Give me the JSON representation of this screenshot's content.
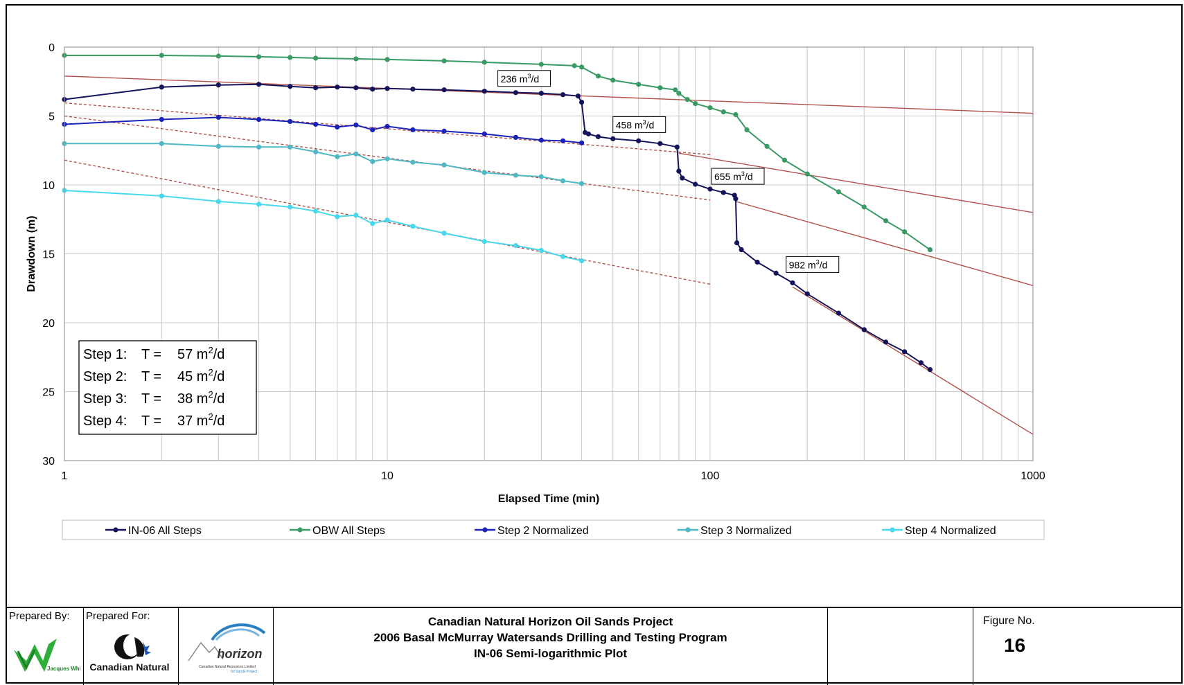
{
  "chart_data": {
    "type": "scatter",
    "x_scale": "log",
    "y_inverted": true,
    "xlabel": "Elapsed Time (min)",
    "ylabel": "Drawdown (m)",
    "xlim": [
      1,
      1000
    ],
    "ylim": [
      0,
      30
    ],
    "x_ticks": [
      "1",
      "10",
      "100",
      "1000"
    ],
    "y_ticks": [
      "0",
      "5",
      "10",
      "15",
      "20",
      "25",
      "30"
    ],
    "grid": true,
    "legend_position": "bottom",
    "series": [
      {
        "name": "IN-06 All Steps",
        "color": "#14145a",
        "x": [
          1,
          2,
          3,
          4,
          5,
          6,
          7,
          8,
          9,
          10,
          12,
          15,
          20,
          25,
          30,
          35,
          39,
          40,
          41,
          42,
          45,
          50,
          60,
          70,
          79,
          80,
          82,
          90,
          100,
          110,
          119,
          120,
          121,
          125,
          140,
          160,
          180,
          200,
          250,
          300,
          350,
          400,
          450,
          480
        ],
        "y": [
          3.8,
          2.9,
          2.75,
          2.7,
          2.85,
          2.95,
          2.9,
          2.95,
          3.05,
          3.0,
          3.05,
          3.1,
          3.2,
          3.3,
          3.35,
          3.45,
          3.55,
          4.0,
          6.2,
          6.3,
          6.5,
          6.65,
          6.8,
          7.0,
          7.25,
          9.0,
          9.5,
          9.95,
          10.3,
          10.55,
          10.75,
          11.0,
          14.2,
          14.7,
          15.6,
          16.4,
          17.1,
          17.9,
          19.3,
          20.5,
          21.4,
          22.1,
          22.9,
          23.4
        ]
      },
      {
        "name": "OBW All Steps",
        "color": "#3a9a64",
        "x": [
          1,
          2,
          3,
          4,
          5,
          6,
          8,
          10,
          15,
          20,
          30,
          38,
          40,
          45,
          50,
          60,
          70,
          78,
          80,
          85,
          90,
          100,
          110,
          120,
          130,
          150,
          170,
          200,
          250,
          300,
          350,
          400,
          480
        ],
        "y": [
          0.6,
          0.6,
          0.65,
          0.7,
          0.75,
          0.8,
          0.85,
          0.9,
          1.0,
          1.1,
          1.25,
          1.35,
          1.45,
          2.1,
          2.4,
          2.7,
          2.95,
          3.1,
          3.35,
          3.8,
          4.1,
          4.4,
          4.7,
          4.9,
          6.0,
          7.2,
          8.2,
          9.2,
          10.5,
          11.6,
          12.6,
          13.4,
          14.7
        ]
      },
      {
        "name": "Step 2 Normalized",
        "color": "#1a22b8",
        "x": [
          1,
          2,
          3,
          4,
          5,
          6,
          7,
          8,
          9,
          10,
          12,
          15,
          20,
          25,
          30,
          35,
          40
        ],
        "y": [
          5.6,
          5.25,
          5.1,
          5.25,
          5.4,
          5.6,
          5.8,
          5.65,
          6.0,
          5.75,
          6.0,
          6.1,
          6.3,
          6.55,
          6.75,
          6.8,
          6.95
        ]
      },
      {
        "name": "Step 3 Normalized",
        "color": "#4fb8c4",
        "x": [
          1,
          2,
          3,
          4,
          5,
          6,
          7,
          8,
          9,
          10,
          12,
          15,
          20,
          25,
          30,
          35,
          40
        ],
        "y": [
          7.0,
          7.0,
          7.2,
          7.25,
          7.25,
          7.6,
          7.95,
          7.75,
          8.3,
          8.1,
          8.35,
          8.55,
          9.1,
          9.3,
          9.4,
          9.7,
          9.9
        ]
      },
      {
        "name": "Step 4 Normalized",
        "color": "#48d8ec",
        "x": [
          1,
          2,
          3,
          4,
          5,
          6,
          7,
          8,
          9,
          10,
          12,
          15,
          20,
          25,
          30,
          35,
          40
        ],
        "y": [
          10.4,
          10.8,
          11.2,
          11.4,
          11.6,
          11.9,
          12.3,
          12.2,
          12.8,
          12.55,
          13.0,
          13.5,
          14.1,
          14.4,
          14.75,
          15.2,
          15.5
        ]
      }
    ],
    "fit_lines": [
      {
        "style": "solid",
        "color": "#b2504a",
        "x": [
          1,
          1000
        ],
        "y": [
          2.1,
          4.8
        ]
      },
      {
        "style": "solid",
        "color": "#b2504a",
        "x": [
          80,
          1000
        ],
        "y": [
          7.7,
          12.0
        ]
      },
      {
        "style": "solid",
        "color": "#b2504a",
        "x": [
          120,
          1000
        ],
        "y": [
          11.2,
          17.3
        ]
      },
      {
        "style": "solid",
        "color": "#b2504a",
        "x": [
          180,
          1000
        ],
        "y": [
          17.4,
          28.1
        ]
      },
      {
        "style": "dashed",
        "color": "#b2504a",
        "x": [
          1,
          100
        ],
        "y": [
          4.05,
          7.8
        ]
      },
      {
        "style": "dashed",
        "color": "#b2504a",
        "x": [
          1,
          100
        ],
        "y": [
          5.0,
          11.1
        ]
      },
      {
        "style": "dashed",
        "color": "#b2504a",
        "x": [
          1,
          100
        ],
        "y": [
          8.2,
          17.2
        ]
      }
    ],
    "rate_labels": [
      {
        "text": "236 m",
        "sup": "3",
        "tail": "/d",
        "x": 22,
        "y": 2.5
      },
      {
        "text": "458 m",
        "sup": "3",
        "tail": "/d",
        "x": 50,
        "y": 5.85
      },
      {
        "text": "655 m",
        "sup": "3",
        "tail": "/d",
        "x": 101,
        "y": 9.6
      },
      {
        "text": "982 m",
        "sup": "3",
        "tail": "/d",
        "x": 172,
        "y": 16.0
      }
    ],
    "transmissivity": [
      {
        "step": "Step 1:",
        "eq": "T =",
        "value": "57 m",
        "sup": "2",
        "unit": "/d"
      },
      {
        "step": "Step 2:",
        "eq": "T =",
        "value": "45 m",
        "sup": "2",
        "unit": "/d"
      },
      {
        "step": "Step 3:",
        "eq": "T =",
        "value": "38 m",
        "sup": "2",
        "unit": "/d"
      },
      {
        "step": "Step 4:",
        "eq": "T =",
        "value": "37 m",
        "sup": "2",
        "unit": "/d"
      }
    ]
  },
  "titleblock": {
    "prepared_by_label": "Prepared By:",
    "prepared_for_label": "Prepared For:",
    "consultant_logo_text": "Jacques Whitford",
    "client_name": "Canadian Natural",
    "project_logo_text": "horizon",
    "project_logo_subtext": "Canadian Natural Resources Limited",
    "project_logo_subtext2": "Oil Sands Project",
    "project_line1": "Canadian Natural Horizon Oil Sands Project",
    "project_line2": "2006 Basal McMurray Watersands Drilling and Testing Program",
    "project_line3": "IN-06 Semi-logarithmic Plot",
    "figure_label": "Figure No.",
    "figure_number": "16"
  }
}
